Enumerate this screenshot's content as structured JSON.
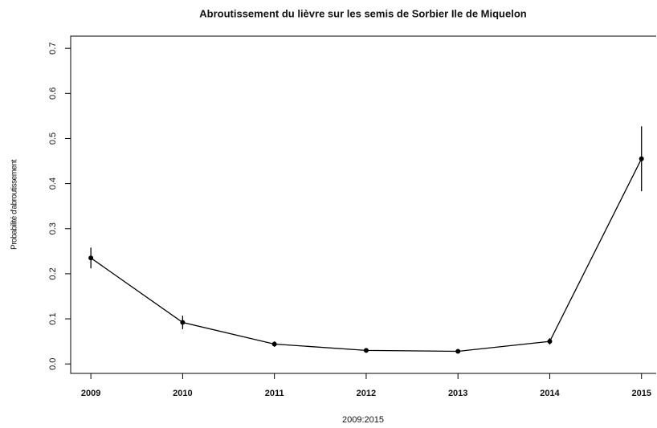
{
  "chart_data": {
    "type": "line",
    "title": "Abroutissement du lièvre sur les semis de Sorbier Ile de Miquelon",
    "x_label": "2009:2015",
    "y_label": "Probabilité d'abroutissement",
    "x": [
      2009,
      2010,
      2011,
      2012,
      2013,
      2014,
      2015
    ],
    "series": [
      {
        "values": [
          0.235,
          0.092,
          0.044,
          0.03,
          0.028,
          0.05,
          0.455
        ],
        "errors": [
          0.023,
          0.015,
          0.006,
          0.005,
          0.004,
          0.007,
          0.072
        ],
        "color": "#000000"
      }
    ],
    "xlim": [
      2008.78,
      2015.16
    ],
    "xticks": [
      2009,
      2010,
      2011,
      2012,
      2013,
      2014,
      2015
    ],
    "ylim": [
      -0.021,
      0.727
    ],
    "yticks": [
      {
        "value": 0,
        "label": "0.0"
      },
      0.1,
      0.2,
      0.3,
      0.4,
      0.5,
      0.6,
      0.7
    ]
  }
}
